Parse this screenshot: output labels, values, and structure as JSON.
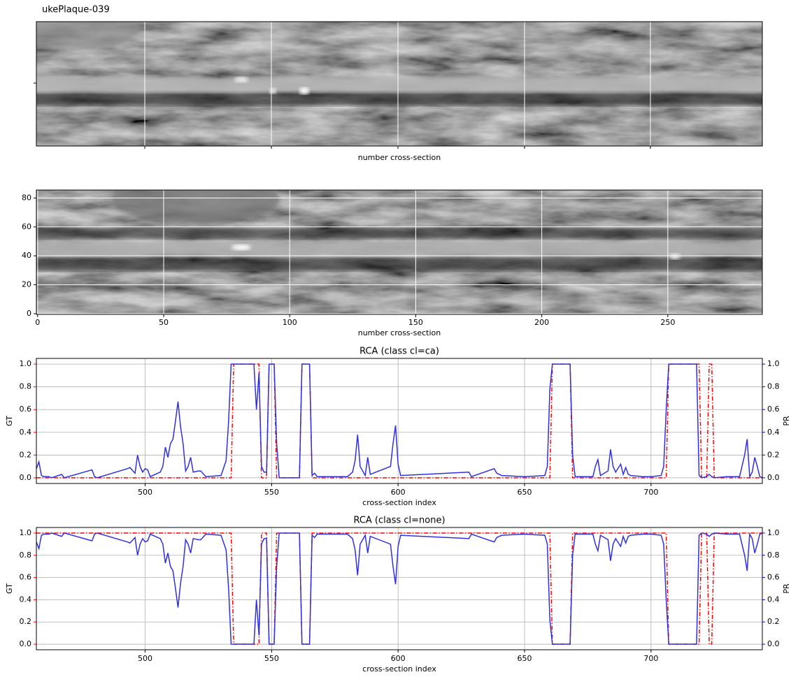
{
  "chart_data": [
    {
      "type": "image",
      "title": "ukePlaque-039",
      "xlabel": "number cross-section"
    },
    {
      "type": "image",
      "xlabel": "number cross-section",
      "xlim": [
        -0.5,
        287.5
      ],
      "ylim": [
        -0.5,
        85.5
      ],
      "xticks": [
        0,
        50,
        100,
        150,
        200,
        250
      ],
      "yticks": [
        0,
        20,
        40,
        60,
        80
      ],
      "grid": true,
      "grid_color": "#ffffff"
    },
    {
      "type": "line",
      "title": "RCA (class cl=ca)",
      "xlabel": "cross-section index",
      "ylabel": "GT",
      "y2label": "PR",
      "ycolor": "#ff0000",
      "y2color": "#0000ff",
      "grid": true,
      "grid_color": "#b0b0b0",
      "xlim": [
        457,
        744
      ],
      "xticks": [
        500,
        550,
        600,
        650,
        700
      ],
      "ylim": [
        -0.05,
        1.05
      ],
      "yticks": [
        {
          "value": 0,
          "label": "0.0"
        },
        0.2,
        0.4,
        0.6,
        0.8,
        {
          "value": 1,
          "label": "1.0"
        }
      ],
      "y2lim": [
        -0.05,
        1.05
      ],
      "y2ticks": [
        {
          "value": 0,
          "label": "0.0"
        },
        0.2,
        0.4,
        0.6,
        0.8,
        {
          "value": 1,
          "label": "1.0"
        }
      ],
      "x": [
        457,
        458,
        459,
        460,
        462,
        463,
        467,
        468,
        479,
        480,
        481,
        493,
        494,
        496,
        497,
        498,
        499,
        500,
        501,
        502,
        506,
        507,
        508,
        509,
        510,
        511,
        512,
        513,
        514,
        515,
        516,
        517,
        518,
        519,
        521,
        522,
        524,
        530,
        532,
        533,
        534,
        535,
        543,
        544,
        545,
        546,
        547,
        548,
        549,
        551,
        552,
        553,
        561,
        562,
        565,
        566,
        567,
        568,
        580,
        582,
        583,
        584,
        585,
        587,
        588,
        589,
        597,
        598,
        599,
        600,
        601,
        628,
        629,
        638,
        639,
        641,
        650,
        658,
        659,
        660,
        661,
        668,
        669,
        670,
        677,
        678,
        679,
        680,
        683,
        684,
        685,
        686,
        688,
        689,
        690,
        691,
        692,
        697,
        700,
        704,
        705,
        706,
        707,
        718,
        719,
        720,
        722,
        723,
        724,
        725,
        730,
        735,
        737,
        738,
        739,
        740,
        741,
        742,
        743,
        744
      ],
      "series": [
        {
          "color": "#ff0000",
          "linestyle": "dashdot",
          "values": [
            0,
            0,
            0,
            0,
            0,
            0,
            0,
            0,
            0,
            0,
            0,
            0,
            0,
            0,
            0,
            0,
            0,
            0,
            0,
            0,
            0,
            0,
            0,
            0,
            0,
            0,
            0,
            0,
            0,
            0,
            0,
            0,
            0,
            0,
            0,
            0,
            0,
            0,
            0,
            0,
            0,
            1,
            1,
            1,
            1,
            0,
            0,
            0,
            1,
            1,
            0,
            0,
            0,
            1,
            1,
            0,
            0,
            0,
            0,
            0,
            0,
            0,
            0,
            0,
            0,
            0,
            0,
            0,
            0,
            0,
            0,
            0,
            0,
            0,
            0,
            0,
            0,
            0,
            0,
            0,
            1,
            1,
            0,
            0,
            0,
            0,
            0,
            0,
            0,
            0,
            0,
            0,
            0,
            0,
            0,
            0,
            0,
            0,
            0,
            0,
            0,
            0,
            1,
            1,
            1,
            0,
            0,
            1,
            1,
            0,
            0,
            0,
            0,
            0,
            0,
            0,
            0,
            0,
            0,
            0
          ]
        },
        {
          "color": "#3030e0",
          "linestyle": "solid",
          "axis": "y2",
          "values": [
            0.08,
            0.14,
            0.02,
            0.01,
            0.01,
            0,
            0.03,
            0,
            0.07,
            0.01,
            0,
            0.08,
            0.09,
            0.04,
            0.2,
            0.1,
            0.05,
            0.08,
            0.07,
            0.01,
            0.05,
            0.1,
            0.27,
            0.18,
            0.3,
            0.34,
            0.5,
            0.67,
            0.45,
            0.3,
            0.06,
            0.1,
            0.18,
            0.05,
            0.06,
            0.06,
            0.01,
            0.02,
            0.15,
            0.5,
            1,
            1,
            1,
            0.6,
            0.92,
            0.1,
            0.05,
            0.05,
            1,
            1,
            0.3,
            0,
            0,
            1,
            1,
            0.02,
            0.04,
            0.01,
            0.01,
            0.05,
            0.15,
            0.38,
            0.1,
            0.02,
            0.18,
            0.03,
            0.1,
            0.3,
            0.46,
            0.12,
            0.02,
            0.05,
            0.01,
            0.08,
            0.04,
            0.02,
            0.01,
            0.02,
            0.1,
            0.78,
            1,
            1,
            0.2,
            0.01,
            0.01,
            0.1,
            0.16,
            0.02,
            0.06,
            0.25,
            0.1,
            0.05,
            0.12,
            0.03,
            0.09,
            0.03,
            0.02,
            0.01,
            0.01,
            0.02,
            0.1,
            0.6,
            1,
            1,
            0.02,
            0,
            0.01,
            0.03,
            0.01,
            0,
            0.01,
            0.01,
            0.2,
            0.34,
            0.01,
            0.05,
            0.18,
            0.1,
            0.01,
            0
          ]
        }
      ]
    },
    {
      "type": "line",
      "title": "RCA (class cl=none)",
      "xlabel": "cross-section index",
      "ylabel": "GT",
      "y2label": "PR",
      "ycolor": "#ff0000",
      "y2color": "#0000ff",
      "grid": true,
      "grid_color": "#b0b0b0",
      "xlim": [
        457,
        744
      ],
      "xticks": [
        500,
        550,
        600,
        650,
        700
      ],
      "ylim": [
        -0.05,
        1.05
      ],
      "yticks": [
        {
          "value": 0,
          "label": "0.0"
        },
        0.2,
        0.4,
        0.6,
        0.8,
        {
          "value": 1,
          "label": "1.0"
        }
      ],
      "y2lim": [
        -0.05,
        1.05
      ],
      "y2ticks": [
        {
          "value": 0,
          "label": "0.0"
        },
        0.2,
        0.4,
        0.6,
        0.8,
        {
          "value": 1,
          "label": "1.0"
        }
      ],
      "x": [
        457,
        458,
        459,
        460,
        462,
        463,
        467,
        468,
        479,
        480,
        481,
        493,
        494,
        496,
        497,
        498,
        499,
        500,
        501,
        502,
        506,
        507,
        508,
        509,
        510,
        511,
        512,
        513,
        514,
        515,
        516,
        517,
        518,
        519,
        521,
        522,
        524,
        530,
        532,
        533,
        534,
        535,
        543,
        544,
        545,
        546,
        547,
        548,
        549,
        551,
        552,
        553,
        561,
        562,
        565,
        566,
        567,
        568,
        580,
        582,
        583,
        584,
        585,
        587,
        588,
        589,
        597,
        598,
        599,
        600,
        601,
        628,
        629,
        638,
        639,
        641,
        650,
        658,
        659,
        660,
        661,
        668,
        669,
        670,
        677,
        678,
        679,
        680,
        683,
        684,
        685,
        686,
        688,
        689,
        690,
        691,
        692,
        697,
        700,
        704,
        705,
        706,
        707,
        718,
        719,
        720,
        722,
        723,
        724,
        725,
        730,
        735,
        737,
        738,
        739,
        740,
        741,
        742,
        743,
        744
      ],
      "series": [
        {
          "color": "#ff0000",
          "linestyle": "dashdot",
          "values": [
            1,
            1,
            1,
            1,
            1,
            1,
            1,
            1,
            1,
            1,
            1,
            1,
            1,
            1,
            1,
            1,
            1,
            1,
            1,
            1,
            1,
            1,
            1,
            1,
            1,
            1,
            1,
            1,
            1,
            1,
            1,
            1,
            1,
            1,
            1,
            1,
            1,
            1,
            1,
            1,
            1,
            0,
            0,
            0,
            0,
            1,
            1,
            1,
            0,
            0,
            1,
            1,
            1,
            0,
            0,
            1,
            1,
            1,
            1,
            1,
            1,
            1,
            1,
            1,
            1,
            1,
            1,
            1,
            1,
            1,
            1,
            1,
            1,
            1,
            1,
            1,
            1,
            1,
            1,
            1,
            0,
            0,
            1,
            1,
            1,
            1,
            1,
            1,
            1,
            1,
            1,
            1,
            1,
            1,
            1,
            1,
            1,
            1,
            1,
            1,
            1,
            1,
            0,
            0,
            0,
            1,
            1,
            0,
            0,
            1,
            1,
            1,
            1,
            1,
            1,
            1,
            1,
            1,
            1,
            1
          ]
        },
        {
          "color": "#3030e0",
          "linestyle": "solid",
          "axis": "y2",
          "values": [
            0.92,
            0.86,
            0.98,
            0.99,
            0.99,
            1,
            0.97,
            1,
            0.93,
            0.99,
            1,
            0.92,
            0.91,
            0.96,
            0.8,
            0.9,
            0.95,
            0.92,
            0.93,
            0.99,
            0.95,
            0.9,
            0.73,
            0.82,
            0.7,
            0.66,
            0.5,
            0.33,
            0.55,
            0.7,
            0.94,
            0.9,
            0.82,
            0.95,
            0.94,
            0.94,
            0.99,
            0.98,
            0.85,
            0.5,
            0,
            0,
            0,
            0.4,
            0.08,
            0.9,
            0.95,
            0.95,
            0,
            0,
            0.7,
            1,
            1,
            0,
            0,
            0.98,
            0.96,
            0.99,
            0.99,
            0.95,
            0.85,
            0.62,
            0.9,
            0.98,
            0.82,
            0.97,
            0.9,
            0.7,
            0.54,
            0.88,
            0.98,
            0.95,
            0.99,
            0.92,
            0.96,
            0.98,
            0.99,
            0.98,
            0.9,
            0.22,
            0,
            0,
            0.8,
            0.99,
            0.99,
            0.9,
            0.84,
            0.98,
            0.94,
            0.75,
            0.9,
            0.95,
            0.88,
            0.97,
            0.91,
            0.97,
            0.98,
            0.99,
            0.99,
            0.98,
            0.9,
            0.4,
            0,
            0,
            0.98,
            1,
            0.99,
            0.97,
            0.99,
            1,
            0.99,
            0.99,
            0.8,
            0.66,
            0.99,
            0.95,
            0.82,
            0.9,
            0.99,
            1
          ]
        }
      ]
    }
  ]
}
